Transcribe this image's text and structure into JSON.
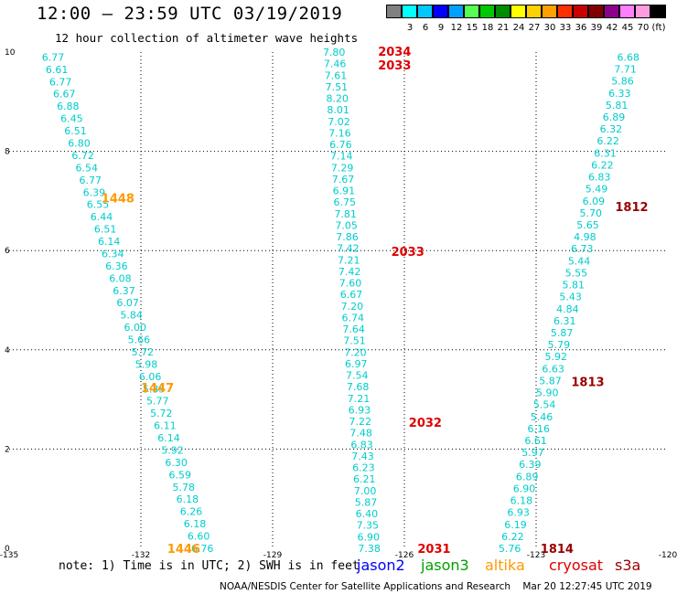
{
  "header": {
    "title": "12:00 – 23:59 UTC 03/19/2019",
    "subtitle": "12 hour collection of altimeter wave heights"
  },
  "legend": {
    "unit_label": "(ft)",
    "bins": [
      {
        "color": "#808080",
        "label": ""
      },
      {
        "color": "#00ffff",
        "label": "3"
      },
      {
        "color": "#00c8ff",
        "label": "6"
      },
      {
        "color": "#0000ff",
        "label": "9"
      },
      {
        "color": "#00a0ff",
        "label": "12"
      },
      {
        "color": "#55ff55",
        "label": "15"
      },
      {
        "color": "#00c800",
        "label": "18"
      },
      {
        "color": "#008c00",
        "label": "21"
      },
      {
        "color": "#ffff00",
        "label": "24"
      },
      {
        "color": "#ffd000",
        "label": "27"
      },
      {
        "color": "#ffa000",
        "label": "30"
      },
      {
        "color": "#ff3000",
        "label": "33"
      },
      {
        "color": "#c80000",
        "label": "36"
      },
      {
        "color": "#800000",
        "label": "39"
      },
      {
        "color": "#8c008c",
        "label": "42"
      },
      {
        "color": "#ff80ff",
        "label": "45"
      },
      {
        "color": "#ff9ce0",
        "label": "70"
      },
      {
        "color": "#000000",
        "label": ""
      }
    ]
  },
  "axes": {
    "x_ticks": [
      "-135",
      "-132",
      "-129",
      "-126",
      "-123",
      "-120"
    ],
    "y_ticks": [
      "0",
      "2",
      "4",
      "6",
      "8",
      "10"
    ],
    "x_range": [
      -135,
      -120
    ],
    "y_range": [
      0,
      10
    ]
  },
  "tracks": [
    {
      "value_color": "#00cccc",
      "x_start": -134.0,
      "x_end": -130.6,
      "y_start": 9.9,
      "y_end": 0.0,
      "values": [
        "6.77",
        "6.61",
        "6.77",
        "6.67",
        "6.88",
        "6.45",
        "6.51",
        "6.80",
        "6.72",
        "6.54",
        "6.77",
        "6.39",
        "6.55",
        "6.44",
        "6.51",
        "6.14",
        "6.34",
        "6.36",
        "6.08",
        "6.37",
        "6.07",
        "5.84",
        "6.00",
        "5.66",
        "5.72",
        "5.98",
        "6.06",
        "5.35",
        "5.77",
        "5.72",
        "6.11",
        "6.14",
        "5.92",
        "6.30",
        "6.59",
        "5.78",
        "6.18",
        "6.26",
        "6.18",
        "6.60",
        "6.76"
      ]
    },
    {
      "value_color": "#00cccc",
      "x_start": -127.6,
      "x_end": -126.8,
      "y_start": 10.0,
      "y_end": 0.0,
      "values": [
        "7.80",
        "7.46",
        "7.61",
        "7.51",
        "8.20",
        "8.01",
        "7.02",
        "7.16",
        "6.76",
        "7.14",
        "7.29",
        "7.67",
        "6.91",
        "6.75",
        "7.81",
        "7.05",
        "7.86",
        "7.42",
        "7.21",
        "7.42",
        "7.60",
        "6.67",
        "7.20",
        "6.74",
        "7.64",
        "7.51",
        "7.20",
        "6.97",
        "7.54",
        "7.68",
        "7.21",
        "6.93",
        "7.22",
        "7.48",
        "6.83",
        "7.43",
        "6.23",
        "6.21",
        "7.00",
        "5.87",
        "6.40",
        "7.35",
        "6.90",
        "7.38"
      ]
    },
    {
      "value_color": "#00cccc",
      "x_start": -120.9,
      "x_end": -123.6,
      "y_start": 9.9,
      "y_end": 0.0,
      "values": [
        "6.68",
        "7.71",
        "5.86",
        "6.33",
        "5.81",
        "6.89",
        "6.32",
        "6.22",
        "6.31",
        "6.22",
        "6.83",
        "5.49",
        "6.09",
        "5.70",
        "5.65",
        "4.98",
        "6.73",
        "5.44",
        "5.55",
        "5.81",
        "5.43",
        "4.84",
        "6.31",
        "5.87",
        "5.79",
        "5.92",
        "6.63",
        "5.87",
        "5.90",
        "5.54",
        "5.46",
        "6.16",
        "6.61",
        "5.97",
        "6.39",
        "6.89",
        "6.90",
        "6.18",
        "6.93",
        "6.19",
        "6.22",
        "5.76"
      ]
    }
  ],
  "pass_labels": [
    {
      "text": "2034",
      "color": "#e00000",
      "x": -126.6,
      "y": 10.0
    },
    {
      "text": "2033",
      "color": "#e00000",
      "x": -126.6,
      "y": 9.72
    },
    {
      "text": "1448",
      "color": "#ff9900",
      "x": -132.9,
      "y": 7.04
    },
    {
      "text": "2033",
      "color": "#e00000",
      "x": -126.3,
      "y": 5.97
    },
    {
      "text": "1447",
      "color": "#ff9900",
      "x": -132.0,
      "y": 3.22
    },
    {
      "text": "2032",
      "color": "#e00000",
      "x": -125.9,
      "y": 2.52
    },
    {
      "text": "1446",
      "color": "#ff9900",
      "x": -131.4,
      "y": -0.02
    },
    {
      "text": "2031",
      "color": "#e00000",
      "x": -125.7,
      "y": -0.02
    },
    {
      "text": "1812",
      "color": "#990000",
      "x": -121.2,
      "y": 6.87
    },
    {
      "text": "1813",
      "color": "#990000",
      "x": -122.2,
      "y": 3.34
    },
    {
      "text": "1814",
      "color": "#990000",
      "x": -122.9,
      "y": -0.02
    }
  ],
  "footer": {
    "note": "note: 1) Time is in UTC; 2) SWH is in feet",
    "satellites": [
      {
        "name": "jason2",
        "color": "#0000ff"
      },
      {
        "name": "jason3",
        "color": "#00a000"
      },
      {
        "name": "altika",
        "color": "#ff9900"
      },
      {
        "name": "cryosat",
        "color": "#e00000"
      },
      {
        "name": "s3a",
        "color": "#990000"
      }
    ],
    "credit": "NOAA/NESDIS Center for Satellite Applications and Research",
    "timestamp": "Mar 20 12:27:45 UTC 2019"
  }
}
